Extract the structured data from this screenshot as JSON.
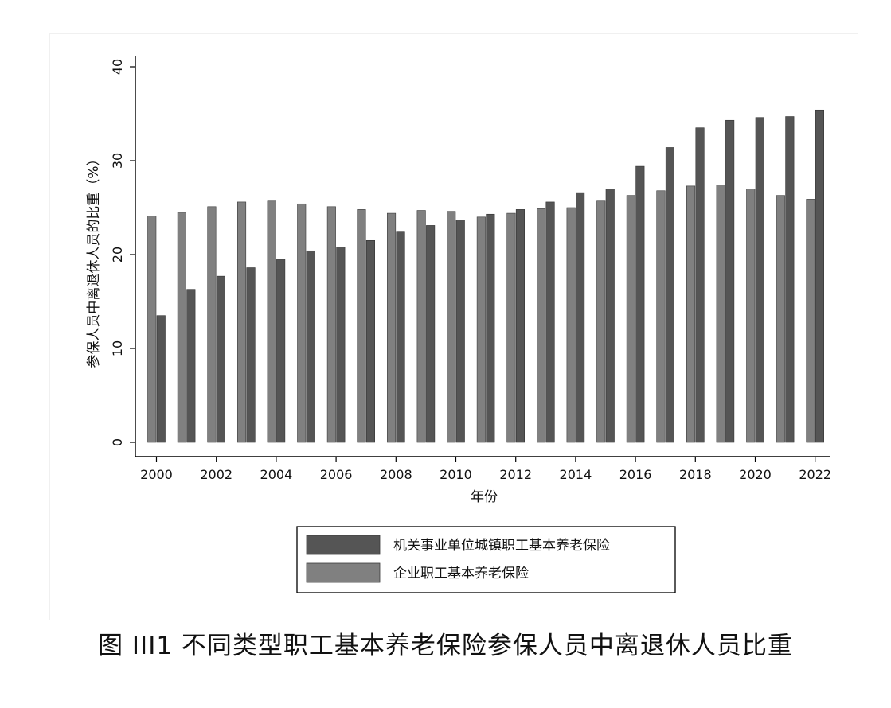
{
  "figure": {
    "caption": "图 III1 不同类型职工基本养老保险参保人员中离退休人员比重"
  },
  "chart_data": {
    "type": "bar",
    "title": "",
    "xlabel": "年份",
    "ylabel": "参保人员中离退休人员的比重（%）",
    "ylim": [
      0,
      40
    ],
    "yticks": [
      "0",
      "10",
      "20",
      "30",
      "40"
    ],
    "xticks": [
      "2000",
      "2002",
      "2004",
      "2006",
      "2008",
      "2010",
      "2012",
      "2014",
      "2016",
      "2018",
      "2020",
      "2022"
    ],
    "categories": [
      "2000",
      "2001",
      "2002",
      "2003",
      "2004",
      "2005",
      "2006",
      "2007",
      "2008",
      "2009",
      "2010",
      "2011",
      "2012",
      "2013",
      "2014",
      "2015",
      "2016",
      "2017",
      "2018",
      "2019",
      "2020",
      "2021",
      "2022"
    ],
    "grid": false,
    "legend_position": "bottom",
    "series": [
      {
        "name": "企业职工基本养老保险",
        "color": "#808080",
        "values": [
          24.1,
          24.5,
          25.1,
          25.6,
          25.7,
          25.4,
          25.1,
          24.8,
          24.4,
          24.7,
          24.6,
          24.0,
          24.4,
          24.9,
          25.0,
          25.7,
          26.3,
          26.8,
          27.3,
          27.4,
          27.0,
          26.3,
          25.9
        ]
      },
      {
        "name": "机关事业单位城镇职工基本养老保险",
        "color": "#555555",
        "values": [
          13.5,
          16.3,
          17.7,
          18.6,
          19.5,
          20.4,
          20.8,
          21.5,
          22.4,
          23.1,
          23.7,
          24.3,
          24.8,
          25.6,
          26.6,
          27.0,
          29.4,
          31.4,
          33.5,
          34.3,
          34.6,
          34.7,
          35.4
        ]
      }
    ],
    "legend_order": [
      1,
      0
    ]
  }
}
